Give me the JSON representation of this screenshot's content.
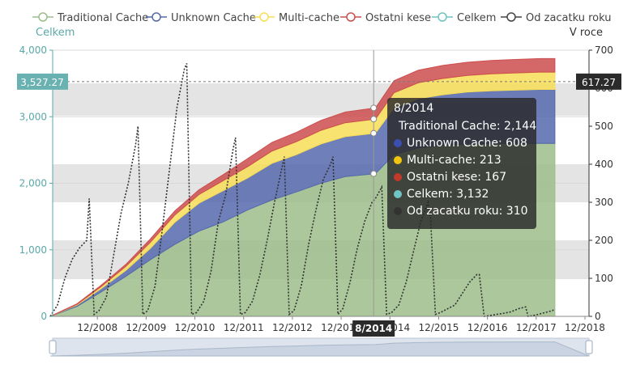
{
  "chart_data": {
    "type": "area",
    "legend": [
      {
        "name": "Traditional Cache",
        "color": "#9cbd8a"
      },
      {
        "name": "Unknown Cache",
        "color": "#5569ad"
      },
      {
        "name": "Multi-cache",
        "color": "#f7dd57"
      },
      {
        "name": "Ostatni kese",
        "color": "#cc4e4e"
      },
      {
        "name": "Celkem",
        "color": "#6fc4c4"
      },
      {
        "name": "Od zacatku roku",
        "color": "#444444"
      }
    ],
    "left_axis": {
      "title": "Celkem",
      "ticks": [
        "0",
        "1,000",
        "2,000",
        "3,000",
        "4,000"
      ],
      "range": [
        0,
        4000
      ]
    },
    "right_axis": {
      "title": "V roce",
      "ticks": [
        "0",
        "100",
        "200",
        "300",
        "400",
        "500",
        "600",
        "700"
      ],
      "range": [
        0,
        700
      ]
    },
    "x_ticks": [
      "12/2008",
      "12/2009",
      "12/2010",
      "12/2011",
      "12/2012",
      "12/2013",
      "12/2014",
      "12/2015",
      "12/2016",
      "12/2017",
      "12/2018"
    ],
    "x_range": [
      "12/2007",
      "12/2018"
    ],
    "pointer": {
      "x_label": "8/2014",
      "left_value": "3,527.27",
      "right_value": "617.27"
    },
    "tooltip": {
      "title": "8/2014",
      "rows": [
        {
          "label": "Traditional Cache: 2,144",
          "color": "#9cbd8a"
        },
        {
          "label": "Unknown Cache: 608",
          "color": "#5569ad"
        },
        {
          "label": "Multi-cache: 213",
          "color": "#f7dd57"
        },
        {
          "label": "Ostatni kese: 167",
          "color": "#cc4e4e"
        },
        {
          "label": "Celkem: 3,132",
          "color": "#6fc4c4"
        },
        {
          "label": "Od zacatku roku: 310",
          "color": "#444444"
        }
      ]
    },
    "series": [
      {
        "name": "Traditional Cache",
        "stack": "total",
        "x": [
          2007.95,
          2008.5,
          2009.0,
          2009.5,
          2010.0,
          2010.5,
          2011.0,
          2011.5,
          2012.0,
          2012.5,
          2013.0,
          2013.5,
          2014.0,
          2014.62,
          2015.0,
          2015.5,
          2016.0,
          2016.5,
          2017.0,
          2017.5,
          2018.0,
          2018.3
        ],
        "values": [
          0,
          150,
          370,
          600,
          850,
          1080,
          1280,
          1420,
          1600,
          1750,
          1870,
          2000,
          2100,
          2144,
          2430,
          2530,
          2570,
          2590,
          2600,
          2600,
          2600,
          2600
        ]
      },
      {
        "name": "Unknown Cache",
        "stack": "total",
        "x": [
          2007.95,
          2008.5,
          2009.0,
          2009.5,
          2010.0,
          2010.5,
          2011.0,
          2011.5,
          2012.0,
          2012.5,
          2013.0,
          2013.5,
          2014.0,
          2014.62,
          2015.0,
          2015.5,
          2016.0,
          2016.5,
          2017.0,
          2017.5,
          2018.0,
          2018.3
        ],
        "values": [
          0,
          20,
          50,
          90,
          170,
          330,
          420,
          470,
          480,
          550,
          560,
          590,
          600,
          608,
          700,
          740,
          760,
          780,
          790,
          800,
          810,
          810
        ]
      },
      {
        "name": "Multi-cache",
        "stack": "total",
        "x": [
          2007.95,
          2008.5,
          2009.0,
          2009.5,
          2010.0,
          2010.5,
          2011.0,
          2011.5,
          2012.0,
          2012.5,
          2013.0,
          2013.5,
          2014.0,
          2014.62,
          2015.0,
          2015.5,
          2016.0,
          2016.5,
          2017.0,
          2017.5,
          2018.0,
          2018.3
        ],
        "values": [
          0,
          10,
          30,
          60,
          90,
          110,
          130,
          150,
          170,
          185,
          195,
          205,
          210,
          213,
          230,
          240,
          245,
          250,
          255,
          258,
          260,
          260
        ]
      },
      {
        "name": "Ostatni kese",
        "stack": "total",
        "x": [
          2007.95,
          2008.5,
          2009.0,
          2009.5,
          2010.0,
          2010.5,
          2011.0,
          2011.5,
          2012.0,
          2012.5,
          2013.0,
          2013.5,
          2014.0,
          2014.62,
          2015.0,
          2015.5,
          2016.0,
          2016.5,
          2017.0,
          2017.5,
          2018.0,
          2018.3
        ],
        "values": [
          0,
          10,
          20,
          30,
          50,
          60,
          70,
          90,
          120,
          130,
          140,
          150,
          160,
          167,
          180,
          190,
          195,
          198,
          200,
          202,
          203,
          204
        ]
      },
      {
        "name": "Od zacatku roku",
        "axis": "right",
        "style": "dotted",
        "x": [
          2007.95,
          2008.1,
          2008.25,
          2008.4,
          2008.55,
          2008.7,
          2008.75,
          2008.85,
          2008.95,
          2009.1,
          2009.25,
          2009.4,
          2009.55,
          2009.7,
          2009.75,
          2009.85,
          2009.95,
          2010.1,
          2010.25,
          2010.4,
          2010.55,
          2010.7,
          2010.75,
          2010.85,
          2010.95,
          2011.1,
          2011.25,
          2011.4,
          2011.55,
          2011.7,
          2011.75,
          2011.85,
          2011.95,
          2012.1,
          2012.25,
          2012.4,
          2012.55,
          2012.7,
          2012.75,
          2012.85,
          2012.95,
          2013.1,
          2013.25,
          2013.4,
          2013.55,
          2013.7,
          2013.75,
          2013.85,
          2013.95,
          2014.1,
          2014.25,
          2014.4,
          2014.55,
          2014.62,
          2014.75,
          2014.85,
          2014.95,
          2015.1,
          2015.25,
          2015.4,
          2015.55,
          2015.7,
          2015.75,
          2015.85,
          2015.95,
          2016.1,
          2016.25,
          2016.4,
          2016.55,
          2016.7,
          2016.75,
          2016.85,
          2016.95,
          2017.1,
          2017.25,
          2017.4,
          2017.55,
          2017.7,
          2017.75,
          2017.85,
          2017.95,
          2018.1,
          2018.25,
          2018.3
        ],
        "values": [
          0,
          30,
          100,
          150,
          180,
          200,
          310,
          5,
          15,
          50,
          160,
          270,
          350,
          450,
          500,
          5,
          15,
          80,
          230,
          390,
          550,
          650,
          665,
          5,
          10,
          40,
          120,
          250,
          320,
          440,
          470,
          5,
          10,
          40,
          110,
          200,
          300,
          390,
          420,
          5,
          15,
          80,
          190,
          280,
          360,
          400,
          420,
          5,
          20,
          90,
          180,
          250,
          300,
          310,
          340,
          5,
          10,
          30,
          90,
          170,
          250,
          300,
          260,
          5,
          10,
          20,
          30,
          60,
          90,
          110,
          110,
          0,
          2,
          5,
          8,
          12,
          20,
          25,
          0,
          2,
          5,
          10,
          15,
          20
        ]
      }
    ]
  }
}
